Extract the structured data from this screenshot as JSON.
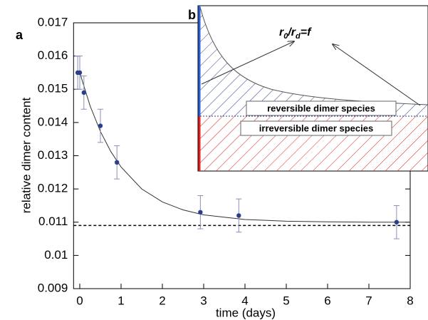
{
  "chart_data": {
    "type": "scatter",
    "panel_labels": [
      "a",
      "b"
    ],
    "x_label": "time (days)",
    "y_label": "relative dimer content",
    "xlim": [
      -0.15,
      8
    ],
    "ylim": [
      0.009,
      0.017
    ],
    "xticks": [
      0,
      1,
      2,
      3,
      4,
      5,
      6,
      7,
      8
    ],
    "yticks": [
      0.009,
      0.01,
      0.011,
      0.012,
      0.013,
      0.014,
      0.015,
      0.016,
      0.017
    ],
    "series": [
      {
        "color": "#2b3f8c",
        "x": [
          -0.05,
          0,
          0.1,
          0.5,
          0.9,
          2.92,
          3.85,
          7.67
        ],
        "values": [
          0.0155,
          0.0155,
          0.0149,
          0.0139,
          0.0128,
          0.0113,
          0.0112,
          0.011
        ],
        "errors": [
          0.0005,
          0.0005,
          0.0005,
          0.0005,
          0.0005,
          0.0005,
          0.0005,
          0.0005
        ]
      }
    ],
    "fit": {
      "color": "#333333",
      "x": [
        0,
        0.25,
        0.5,
        0.75,
        1,
        1.5,
        2,
        2.5,
        3,
        4,
        5,
        6,
        7,
        8
      ],
      "values": [
        0.0155,
        0.0145,
        0.01373,
        0.01313,
        0.01266,
        0.012,
        0.01161,
        0.01137,
        0.01122,
        0.01108,
        0.01103,
        0.01101,
        0.011,
        0.011
      ]
    },
    "reference_line": 0.0109,
    "inset": {
      "ratio_label_parts": [
        "r",
        "0",
        "/r",
        "d",
        "=f"
      ],
      "reversible_label": "reversible dimer species",
      "irreversible_label": "irreversible dimer species"
    }
  }
}
